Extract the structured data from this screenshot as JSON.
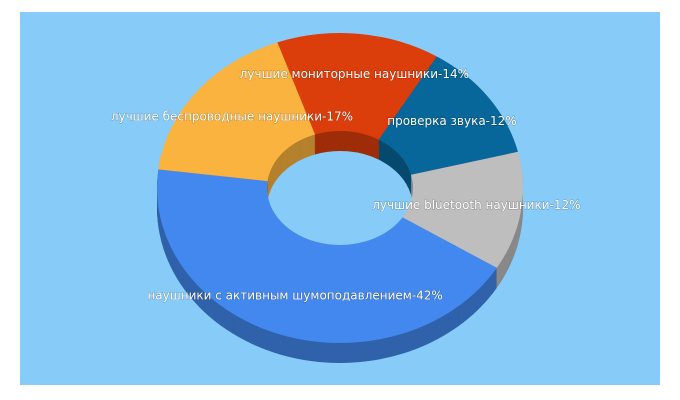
{
  "chart_data": {
    "type": "pie",
    "values": [
      14,
      12,
      12,
      42,
      17
    ],
    "value_labels": [
      "лучшие мониторные наушники-14%",
      "проверка звука-12%",
      "лучшие bluetooth наушники-12%",
      "наушники с активным шумоподавлением-42%",
      "лучшие беспроводные наушники-17%"
    ],
    "colors": [
      "#dc3e0b",
      "#08679a",
      "#bebebe",
      "#4388ee",
      "#fbb33f"
    ]
  }
}
